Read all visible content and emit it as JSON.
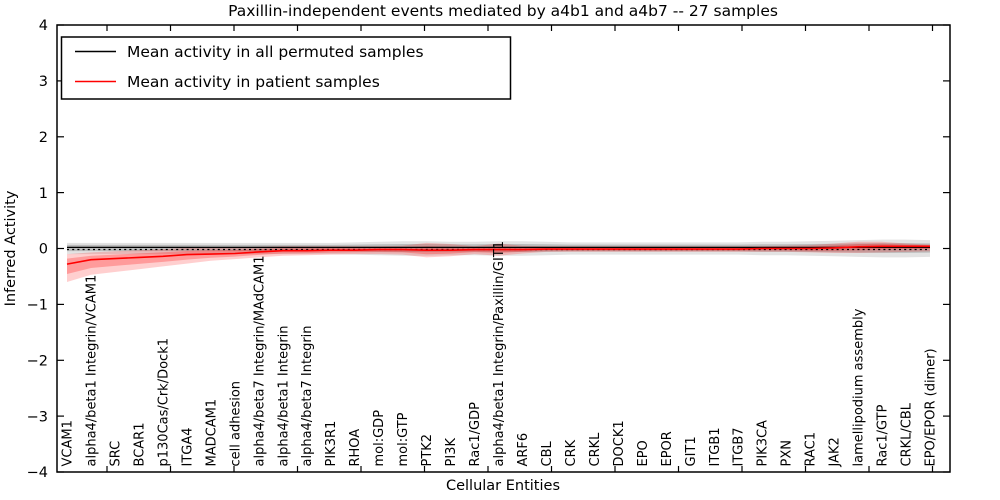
{
  "legend": {
    "items": [
      {
        "label": "Mean activity in all permuted samples",
        "color": "#000000"
      },
      {
        "label": "Mean activity in patient samples",
        "color": "#ff0000"
      }
    ]
  },
  "chart_data": {
    "type": "line",
    "title": "Paxillin-independent events mediated by a4b1 and a4b7 -- 27 samples",
    "xlabel": "Cellular Entities",
    "ylabel": "Inferred Activity",
    "ylim": [
      -4,
      4
    ],
    "yticks": [
      4,
      3,
      2,
      1,
      0,
      -1,
      -2,
      -3,
      -4
    ],
    "grid": false,
    "legend_position": "upper left",
    "zero_reference_line": "dotted",
    "categories": [
      "VCAM1",
      "alpha4/beta1 Integrin/VCAM1",
      "SRC",
      "BCAR1",
      "p130Cas/Crk/Dock1",
      "ITGA4",
      "MADCAM1",
      "cell adhesion",
      "alpha4/beta7 Integrin/MAdCAM1",
      "alpha4/beta1 Integrin",
      "alpha4/beta7 Integrin",
      "PIK3R1",
      "RHOA",
      "mol:GDP",
      "mol:GTP",
      "PTK2",
      "PI3K",
      "Rac1/GDP",
      "alpha4/beta1 Integrin/Paxillin/GIT1",
      "ARF6",
      "CBL",
      "CRK",
      "CRKL",
      "DOCK1",
      "EPO",
      "EPOR",
      "GIT1",
      "ITGB1",
      "ITGB7",
      "PIK3CA",
      "PXN",
      "RAC1",
      "JAK2",
      "lamellipodium assembly",
      "Rac1/GTP",
      "CRKL/CBL",
      "EPO/EPOR (dimer)"
    ],
    "series": [
      {
        "id": "permuted",
        "name": "Mean activity in all permuted samples",
        "color": "#000000",
        "line_width": 1.3,
        "band_opacity": 0.11,
        "values": [
          0.02,
          0.02,
          0.02,
          0.02,
          0.02,
          0.02,
          0.02,
          0.02,
          0.02,
          0.02,
          0.02,
          0.02,
          0.02,
          0.02,
          0.02,
          0.02,
          0.02,
          0.02,
          0.02,
          0.02,
          0.02,
          0.02,
          0.02,
          0.02,
          0.02,
          0.02,
          0.02,
          0.02,
          0.02,
          0.02,
          0.02,
          0.02,
          0.02,
          0.02,
          0.02,
          0.02,
          0.02
        ],
        "band_low": [
          -0.1,
          -0.1,
          -0.1,
          -0.1,
          -0.1,
          -0.1,
          -0.1,
          -0.1,
          -0.1,
          -0.1,
          -0.1,
          -0.1,
          -0.11,
          -0.12,
          -0.13,
          -0.13,
          -0.12,
          -0.12,
          -0.13,
          -0.13,
          -0.12,
          -0.11,
          -0.11,
          -0.11,
          -0.11,
          -0.11,
          -0.11,
          -0.11,
          -0.11,
          -0.12,
          -0.12,
          -0.13,
          -0.14,
          -0.15,
          -0.16,
          -0.16,
          -0.15
        ],
        "band_high": [
          0.1,
          0.1,
          0.1,
          0.1,
          0.1,
          0.1,
          0.1,
          0.1,
          0.1,
          0.1,
          0.1,
          0.1,
          0.11,
          0.12,
          0.13,
          0.13,
          0.12,
          0.12,
          0.13,
          0.13,
          0.12,
          0.11,
          0.11,
          0.11,
          0.11,
          0.11,
          0.11,
          0.11,
          0.11,
          0.12,
          0.12,
          0.13,
          0.14,
          0.15,
          0.16,
          0.16,
          0.15
        ]
      },
      {
        "id": "patient",
        "name": "Mean activity in patient samples",
        "color": "#ff0000",
        "line_width": 1.6,
        "band_opacity": 0.19,
        "values": [
          -0.28,
          -0.2,
          -0.18,
          -0.16,
          -0.14,
          -0.11,
          -0.1,
          -0.09,
          -0.06,
          -0.04,
          -0.04,
          -0.03,
          -0.03,
          -0.02,
          -0.02,
          -0.03,
          -0.03,
          -0.02,
          -0.02,
          -0.02,
          -0.01,
          -0.01,
          -0.01,
          -0.01,
          -0.01,
          -0.01,
          -0.01,
          -0.01,
          -0.01,
          0.0,
          0.0,
          0.0,
          0.01,
          0.03,
          0.04,
          0.04,
          0.04
        ],
        "band_low": [
          -0.6,
          -0.47,
          -0.42,
          -0.37,
          -0.32,
          -0.27,
          -0.22,
          -0.19,
          -0.16,
          -0.13,
          -0.12,
          -0.11,
          -0.1,
          -0.1,
          -0.11,
          -0.16,
          -0.14,
          -0.1,
          -0.13,
          -0.09,
          -0.06,
          -0.06,
          -0.06,
          -0.06,
          -0.06,
          -0.06,
          -0.06,
          -0.06,
          -0.06,
          -0.06,
          -0.06,
          -0.07,
          -0.08,
          -0.08,
          -0.07,
          -0.06,
          -0.05
        ],
        "band_high": [
          -0.1,
          -0.07,
          -0.05,
          -0.03,
          -0.01,
          0.01,
          0.02,
          0.02,
          0.03,
          0.04,
          0.04,
          0.04,
          0.04,
          0.04,
          0.05,
          0.1,
          0.08,
          0.04,
          0.09,
          0.05,
          0.04,
          0.04,
          0.04,
          0.04,
          0.04,
          0.04,
          0.04,
          0.04,
          0.04,
          0.04,
          0.05,
          0.06,
          0.09,
          0.12,
          0.12,
          0.09,
          0.07
        ]
      }
    ]
  }
}
